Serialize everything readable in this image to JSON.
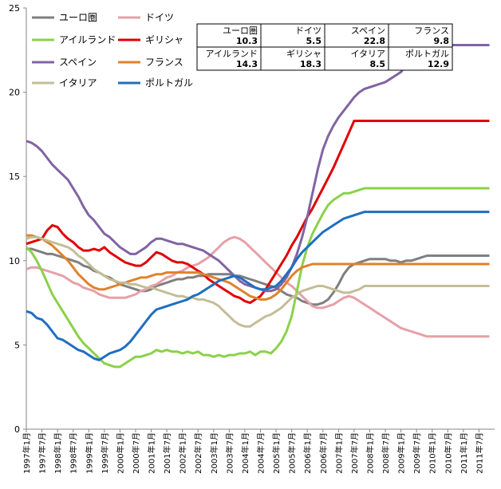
{
  "chart_data": {
    "type": "line",
    "ylim": [
      0,
      25
    ],
    "yticks": [
      "0",
      "5",
      "10",
      "15",
      "20",
      "25"
    ],
    "xticks": [
      "1997年1月",
      "1997年7月",
      "1998年1月",
      "1998年7月",
      "1999年1月",
      "1999年7月",
      "2000年1月",
      "2000年7月",
      "2001年1月",
      "2001年7月",
      "2002年1月",
      "2002年7月",
      "2003年1月",
      "2003年7月",
      "2004年1月",
      "2004年7月",
      "2005年1月",
      "2005年7月",
      "2006年1月",
      "2006年7月",
      "2007年1月",
      "2007年7月",
      "2008年1月",
      "2008年7月",
      "2009年1月",
      "2009年7月",
      "2010年1月",
      "2010年7月",
      "2011年1月",
      "2011年7月"
    ],
    "grid": false,
    "legend_position": "top-left",
    "x_points": [
      0,
      2,
      4,
      6,
      8,
      10,
      12,
      14,
      16,
      18,
      20,
      22,
      24,
      26,
      28,
      30,
      32,
      34,
      36,
      38,
      40,
      42,
      44,
      46,
      48,
      50,
      52,
      54,
      56,
      58,
      60,
      62,
      64,
      66,
      68,
      70,
      72,
      74,
      76,
      78,
      80,
      82,
      84,
      86,
      88,
      90,
      92,
      94,
      96,
      98,
      100,
      102,
      104,
      106,
      108,
      110,
      112,
      114,
      116,
      118,
      120,
      122,
      124,
      126,
      128,
      130,
      132,
      134,
      136,
      138,
      140,
      142,
      144,
      146,
      148,
      150,
      152,
      154,
      156,
      158,
      160,
      162,
      164,
      166,
      168,
      170,
      172,
      174,
      176,
      178
    ],
    "series": [
      {
        "name": "ユーロ圏",
        "color": "#7f7f7f",
        "values": [
          10.7,
          10.7,
          10.6,
          10.5,
          10.4,
          10.4,
          10.3,
          10.2,
          10.1,
          10.0,
          9.9,
          9.7,
          9.6,
          9.4,
          9.3,
          9.1,
          9.0,
          8.8,
          8.6,
          8.5,
          8.4,
          8.3,
          8.2,
          8.2,
          8.3,
          8.5,
          8.6,
          8.7,
          8.8,
          8.9,
          8.9,
          9.0,
          9.0,
          9.1,
          9.1,
          9.2,
          9.2,
          9.2,
          9.2,
          9.2,
          9.1,
          9.1,
          9.0,
          8.9,
          8.8,
          8.7,
          8.6,
          8.5,
          8.4,
          8.2,
          8.0,
          7.9,
          7.8,
          7.6,
          7.5,
          7.4,
          7.4,
          7.5,
          7.7,
          8.1,
          8.6,
          9.2,
          9.6,
          9.8,
          9.9,
          10.0,
          10.1,
          10.1,
          10.1,
          10.1,
          10.0,
          10.0,
          9.9,
          10.0,
          10.0,
          10.1,
          10.2,
          10.3,
          10.3,
          10.3,
          10.3,
          10.3,
          10.3,
          10.3,
          10.3,
          10.3,
          10.3,
          10.3,
          10.3,
          10.3
        ]
      },
      {
        "name": "ドイツ",
        "color": "#e6a0a8",
        "values": [
          9.5,
          9.6,
          9.6,
          9.5,
          9.4,
          9.3,
          9.2,
          9.1,
          8.9,
          8.7,
          8.6,
          8.4,
          8.3,
          8.2,
          8.0,
          7.9,
          7.8,
          7.8,
          7.8,
          7.8,
          7.9,
          8.0,
          8.2,
          8.3,
          8.5,
          8.6,
          8.8,
          9.0,
          9.1,
          9.3,
          9.4,
          9.6,
          9.7,
          9.8,
          10.0,
          10.2,
          10.5,
          10.8,
          11.1,
          11.3,
          11.4,
          11.3,
          11.1,
          10.8,
          10.5,
          10.2,
          9.9,
          9.6,
          9.3,
          9.0,
          8.7,
          8.5,
          8.2,
          7.9,
          7.6,
          7.3,
          7.2,
          7.2,
          7.3,
          7.4,
          7.6,
          7.8,
          7.9,
          7.8,
          7.6,
          7.4,
          7.2,
          7.0,
          6.8,
          6.6,
          6.4,
          6.2,
          6.0,
          5.9,
          5.8,
          5.7,
          5.6,
          5.5,
          5.5,
          5.5,
          5.5,
          5.5,
          5.5,
          5.5,
          5.5,
          5.5,
          5.5,
          5.5,
          5.5,
          5.5
        ]
      },
      {
        "name": "アイルランド",
        "color": "#8bd14a",
        "values": [
          10.8,
          10.5,
          10.0,
          9.4,
          8.7,
          8.0,
          7.5,
          7.0,
          6.5,
          6.0,
          5.5,
          5.1,
          4.8,
          4.5,
          4.2,
          3.9,
          3.8,
          3.7,
          3.7,
          3.9,
          4.1,
          4.3,
          4.3,
          4.4,
          4.5,
          4.7,
          4.6,
          4.7,
          4.6,
          4.6,
          4.5,
          4.6,
          4.5,
          4.6,
          4.4,
          4.4,
          4.3,
          4.4,
          4.3,
          4.4,
          4.4,
          4.5,
          4.5,
          4.6,
          4.4,
          4.6,
          4.6,
          4.5,
          4.8,
          5.2,
          5.8,
          6.7,
          8.2,
          9.7,
          10.8,
          11.6,
          12.2,
          12.8,
          13.3,
          13.6,
          13.8,
          14.0,
          14.0,
          14.1,
          14.2,
          14.3,
          14.3,
          14.3,
          14.3,
          14.3,
          14.3,
          14.3,
          14.3,
          14.3,
          14.3,
          14.3,
          14.3,
          14.3,
          14.3,
          14.3,
          14.3,
          14.3,
          14.3,
          14.3,
          14.3,
          14.3,
          14.3,
          14.3,
          14.3,
          14.3
        ]
      },
      {
        "name": "ギリシャ",
        "color": "#e00000",
        "values": [
          11.0,
          11.1,
          11.2,
          11.3,
          11.8,
          12.1,
          12.0,
          11.6,
          11.3,
          11.1,
          10.8,
          10.6,
          10.6,
          10.7,
          10.6,
          10.8,
          10.5,
          10.3,
          10.1,
          9.9,
          9.8,
          9.7,
          9.7,
          9.9,
          10.2,
          10.5,
          10.4,
          10.2,
          10.0,
          9.9,
          9.9,
          9.8,
          9.6,
          9.4,
          9.2,
          8.9,
          8.7,
          8.5,
          8.3,
          8.1,
          7.9,
          7.8,
          7.6,
          7.5,
          7.7,
          7.9,
          8.3,
          8.8,
          9.3,
          9.8,
          10.3,
          10.9,
          11.4,
          12.0,
          12.6,
          13.1,
          13.7,
          14.3,
          14.9,
          15.5,
          16.2,
          16.9,
          17.6,
          18.3,
          18.3,
          18.3,
          18.3,
          18.3,
          18.3,
          18.3,
          18.3,
          18.3,
          18.3,
          18.3,
          18.3,
          18.3,
          18.3,
          18.3,
          18.3,
          18.3,
          18.3,
          18.3,
          18.3,
          18.3,
          18.3,
          18.3,
          18.3,
          18.3,
          18.3,
          18.3
        ]
      },
      {
        "name": "スペイン",
        "color": "#8064a2",
        "values": [
          17.1,
          17.0,
          16.8,
          16.5,
          16.1,
          15.7,
          15.4,
          15.1,
          14.8,
          14.3,
          13.8,
          13.2,
          12.7,
          12.4,
          12.0,
          11.6,
          11.4,
          11.1,
          10.8,
          10.6,
          10.4,
          10.4,
          10.6,
          10.8,
          11.1,
          11.3,
          11.3,
          11.2,
          11.1,
          11.0,
          11.0,
          10.9,
          10.8,
          10.7,
          10.6,
          10.4,
          10.2,
          10.0,
          9.7,
          9.4,
          9.1,
          8.8,
          8.6,
          8.5,
          8.4,
          8.3,
          8.2,
          8.2,
          8.3,
          8.6,
          9.0,
          9.6,
          10.4,
          11.4,
          12.6,
          14.0,
          15.4,
          16.6,
          17.4,
          18.0,
          18.5,
          18.9,
          19.3,
          19.7,
          20.0,
          20.2,
          20.3,
          20.4,
          20.5,
          20.6,
          20.8,
          21.0,
          21.2,
          21.6,
          22.0,
          22.4,
          22.8,
          22.8,
          22.8,
          22.8,
          22.8,
          22.8,
          22.8,
          22.8,
          22.8,
          22.8,
          22.8,
          22.8,
          22.8,
          22.8
        ]
      },
      {
        "name": "フランス",
        "color": "#e0822b",
        "values": [
          11.5,
          11.5,
          11.4,
          11.3,
          11.1,
          10.9,
          10.6,
          10.3,
          10.0,
          9.6,
          9.2,
          8.9,
          8.6,
          8.4,
          8.3,
          8.3,
          8.4,
          8.5,
          8.6,
          8.7,
          8.8,
          8.9,
          9.0,
          9.0,
          9.1,
          9.2,
          9.2,
          9.3,
          9.3,
          9.3,
          9.3,
          9.3,
          9.3,
          9.3,
          9.2,
          9.1,
          9.0,
          8.9,
          8.8,
          8.7,
          8.5,
          8.3,
          8.1,
          7.9,
          7.8,
          7.7,
          7.7,
          7.8,
          8.0,
          8.3,
          8.7,
          9.1,
          9.4,
          9.6,
          9.7,
          9.8,
          9.8,
          9.8,
          9.8,
          9.8,
          9.8,
          9.8,
          9.8,
          9.8,
          9.8,
          9.8,
          9.8,
          9.8,
          9.8,
          9.8,
          9.8,
          9.8,
          9.8,
          9.8,
          9.8,
          9.8,
          9.8,
          9.8,
          9.8,
          9.8,
          9.8,
          9.8,
          9.8,
          9.8,
          9.8,
          9.8,
          9.8,
          9.8,
          9.8,
          9.8
        ]
      },
      {
        "name": "イタリア",
        "color": "#c4bd97",
        "values": [
          11.3,
          11.4,
          11.4,
          11.3,
          11.2,
          11.1,
          11.0,
          10.9,
          10.8,
          10.6,
          10.3,
          10.1,
          9.8,
          9.5,
          9.3,
          9.1,
          8.9,
          8.8,
          8.7,
          8.7,
          8.6,
          8.6,
          8.5,
          8.4,
          8.4,
          8.3,
          8.2,
          8.1,
          8.0,
          7.9,
          7.9,
          7.8,
          7.8,
          7.7,
          7.7,
          7.6,
          7.5,
          7.3,
          7.0,
          6.7,
          6.4,
          6.2,
          6.1,
          6.1,
          6.3,
          6.5,
          6.7,
          6.8,
          7.0,
          7.2,
          7.5,
          7.8,
          8.0,
          8.2,
          8.3,
          8.4,
          8.5,
          8.5,
          8.4,
          8.3,
          8.2,
          8.1,
          8.1,
          8.2,
          8.3,
          8.5,
          8.5,
          8.5,
          8.5,
          8.5,
          8.5,
          8.5,
          8.5,
          8.5,
          8.5,
          8.5,
          8.5,
          8.5,
          8.5,
          8.5,
          8.5,
          8.5,
          8.5,
          8.5,
          8.5,
          8.5,
          8.5,
          8.5,
          8.5,
          8.5
        ]
      },
      {
        "name": "ポルトガル",
        "color": "#1f6fc0",
        "values": [
          7.0,
          6.9,
          6.6,
          6.5,
          6.2,
          5.8,
          5.4,
          5.3,
          5.1,
          4.9,
          4.7,
          4.6,
          4.4,
          4.2,
          4.1,
          4.3,
          4.5,
          4.6,
          4.7,
          4.9,
          5.2,
          5.6,
          6.0,
          6.4,
          6.8,
          7.1,
          7.2,
          7.3,
          7.4,
          7.5,
          7.6,
          7.7,
          7.9,
          8.0,
          8.2,
          8.4,
          8.6,
          8.8,
          8.9,
          9.0,
          9.1,
          9.0,
          8.8,
          8.6,
          8.4,
          8.3,
          8.3,
          8.4,
          8.5,
          8.8,
          9.2,
          9.6,
          10.1,
          10.5,
          10.8,
          11.1,
          11.4,
          11.7,
          11.9,
          12.1,
          12.3,
          12.5,
          12.6,
          12.7,
          12.8,
          12.9,
          12.9,
          12.9,
          12.9,
          12.9,
          12.9,
          12.9,
          12.9,
          12.9,
          12.9,
          12.9,
          12.9,
          12.9,
          12.9,
          12.9,
          12.9,
          12.9,
          12.9,
          12.9,
          12.9,
          12.9,
          12.9,
          12.9,
          12.9,
          12.9
        ]
      }
    ],
    "table": [
      [
        {
          "label": "ユーロ圏",
          "value": "10.3"
        },
        {
          "label": "ドイツ",
          "value": "5.5"
        },
        {
          "label": "スペイン",
          "value": "22.8"
        },
        {
          "label": "フランス",
          "value": "9.8"
        }
      ],
      [
        {
          "label": "アイルランド",
          "value": "14.3"
        },
        {
          "label": "ギリシャ",
          "value": "18.3"
        },
        {
          "label": "イタリア",
          "value": "8.5"
        },
        {
          "label": "ポルトガル",
          "value": "12.9"
        }
      ]
    ]
  }
}
